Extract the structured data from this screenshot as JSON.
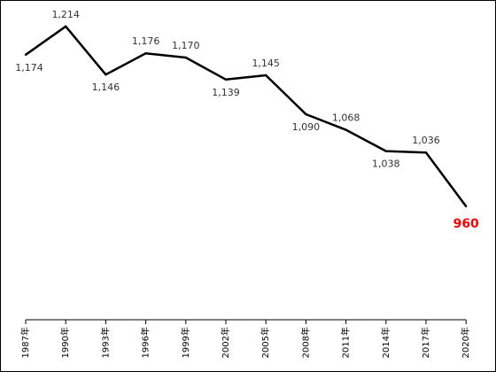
{
  "chart_data": {
    "type": "line",
    "categories": [
      "1987年",
      "1990年",
      "1993年",
      "1996年",
      "1999年",
      "2002年",
      "2005年",
      "2008年",
      "2011年",
      "2014年",
      "2017年",
      "2020年"
    ],
    "values": [
      1174,
      1214,
      1146,
      1176,
      1170,
      1139,
      1145,
      1090,
      1068,
      1038,
      1036,
      960
    ],
    "data_labels": [
      "1,174",
      "1,214",
      "1,146",
      "1,176",
      "1,170",
      "1,139",
      "1,145",
      "1,090",
      "1,068",
      "1,038",
      "1,036",
      "960"
    ],
    "highlight_index": 11,
    "ylim": [
      800,
      1250
    ],
    "grid": false,
    "legend": "none",
    "colors": {
      "line": "#000000",
      "highlight": "#ff0000",
      "label": "#333333",
      "axis": "#000000"
    }
  }
}
